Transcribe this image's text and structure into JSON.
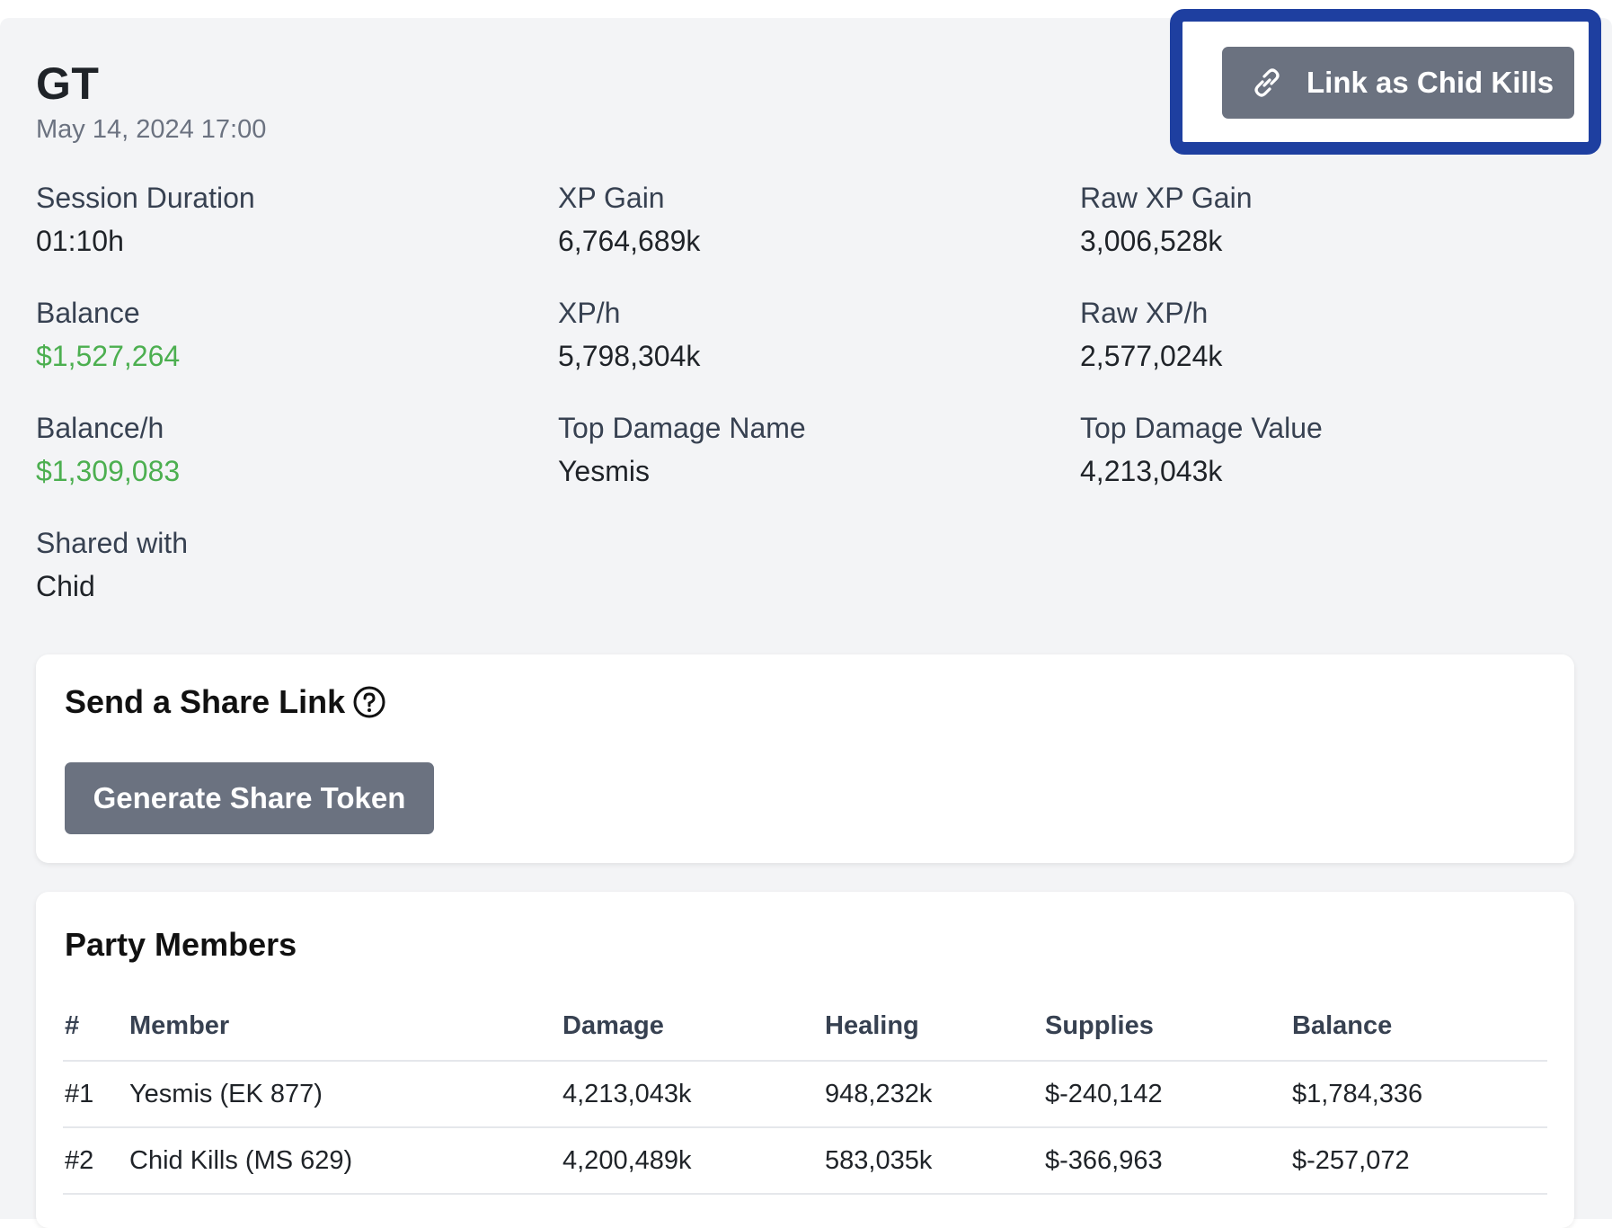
{
  "session": {
    "title": "GT",
    "date": "May 14, 2024 17:00"
  },
  "link_button": {
    "label": "Link as Chid Kills",
    "icon": "link-icon"
  },
  "stats": {
    "session_duration": {
      "label": "Session Duration",
      "value": "01:10h"
    },
    "xp_gain": {
      "label": "XP Gain",
      "value": "6,764,689k"
    },
    "raw_xp_gain": {
      "label": "Raw XP Gain",
      "value": "3,006,528k"
    },
    "balance": {
      "label": "Balance",
      "value": "$1,527,264"
    },
    "xp_per_hour": {
      "label": "XP/h",
      "value": "5,798,304k"
    },
    "raw_xp_per_hour": {
      "label": "Raw XP/h",
      "value": "2,577,024k"
    },
    "balance_per_hour": {
      "label": "Balance/h",
      "value": "$1,309,083"
    },
    "top_damage_name": {
      "label": "Top Damage Name",
      "value": "Yesmis"
    },
    "top_damage_value": {
      "label": "Top Damage Value",
      "value": "4,213,043k"
    },
    "shared_with": {
      "label": "Shared with",
      "value": "Chid"
    }
  },
  "share": {
    "title": "Send a Share Link",
    "help_icon": "question-circle-icon",
    "button_label": "Generate Share Token"
  },
  "party": {
    "title": "Party Members",
    "columns": [
      "#",
      "Member",
      "Damage",
      "Healing",
      "Supplies",
      "Balance"
    ],
    "rows": [
      {
        "rank": "#1",
        "member": "Yesmis (EK 877)",
        "damage": "4,213,043k",
        "healing": "948,232k",
        "supplies": "$-240,142",
        "balance": "$1,784,336"
      },
      {
        "rank": "#2",
        "member": "Chid Kills (MS 629)",
        "damage": "4,200,489k",
        "healing": "583,035k",
        "supplies": "$-366,963",
        "balance": "$-257,072"
      }
    ]
  },
  "colors": {
    "positive": "#4caf50",
    "negative": "#e05a50",
    "button": "#6b7280",
    "highlight": "#1e3fa0"
  }
}
